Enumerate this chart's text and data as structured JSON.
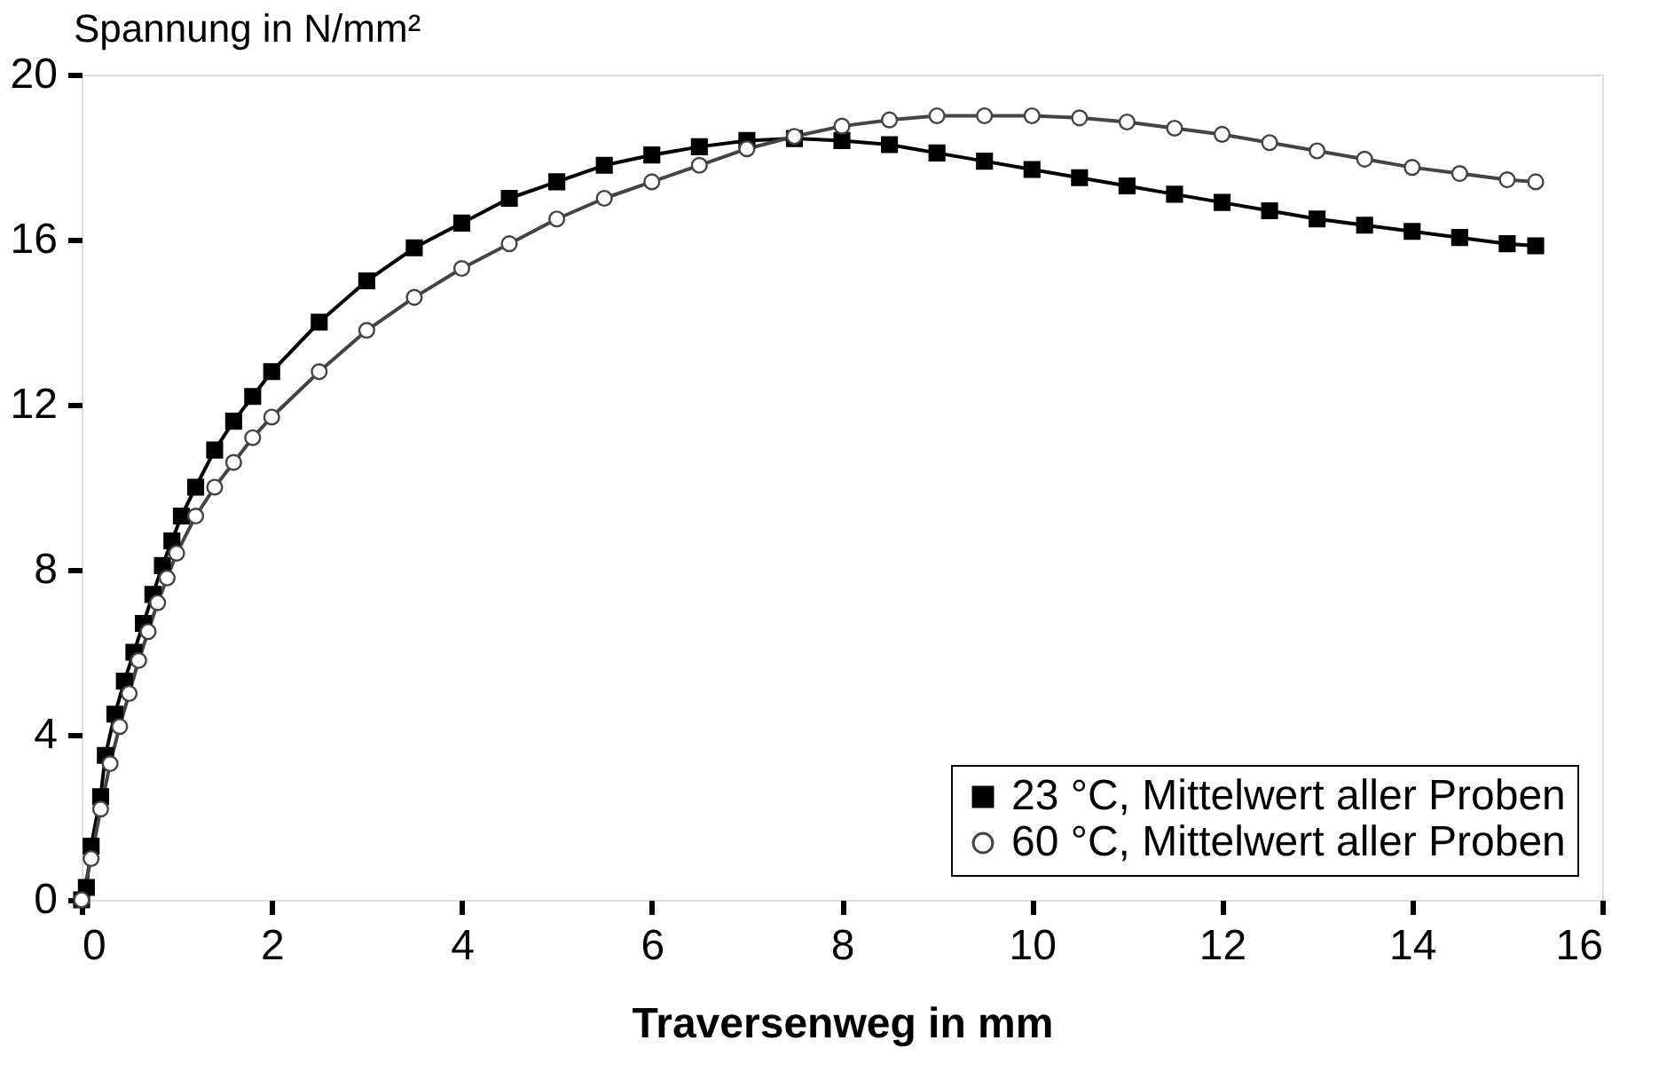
{
  "chart_data": {
    "type": "line",
    "ylabel": "Spannung in N/mm²",
    "xlabel": "Traversenweg in mm",
    "xlim": [
      0,
      16
    ],
    "xticks": [
      0,
      2,
      4,
      6,
      8,
      10,
      12,
      14,
      16
    ],
    "ylim": [
      0,
      20
    ],
    "yticks": [
      0,
      4,
      8,
      12,
      16,
      20
    ],
    "grid": false,
    "legend": "bottom right",
    "line_style": "solid",
    "series": [
      {
        "name": "23 °C, Mittelwert aller Proben",
        "color": "#000000",
        "marker": "square",
        "x": [
          0,
          0.05,
          0.1,
          0.2,
          0.25,
          0.35,
          0.45,
          0.55,
          0.65,
          0.75,
          0.85,
          0.95,
          1.05,
          1.2,
          1.4,
          1.6,
          1.8,
          2,
          2.5,
          3,
          3.5,
          4,
          4.5,
          5,
          5.5,
          6,
          6.5,
          7,
          7.5,
          8,
          8.5,
          9,
          9.5,
          10,
          10.5,
          11,
          11.5,
          12,
          12.5,
          13,
          13.5,
          14,
          14.5,
          15,
          15.3
        ],
        "values": [
          0,
          0.3,
          1.3,
          2.5,
          3.5,
          4.5,
          5.3,
          6,
          6.7,
          7.4,
          8.1,
          8.7,
          9.3,
          10,
          10.9,
          11.6,
          12.2,
          12.8,
          14,
          15,
          15.8,
          16.4,
          17,
          17.4,
          17.8,
          18.05,
          18.25,
          18.4,
          18.45,
          18.4,
          18.3,
          18.1,
          17.9,
          17.7,
          17.5,
          17.3,
          17.1,
          16.9,
          16.7,
          16.5,
          16.35,
          16.2,
          16.05,
          15.9,
          15.85
        ]
      },
      {
        "name": "60 °C, Mittelwert aller Proben",
        "color": "#444444",
        "marker": "circle",
        "x": [
          0,
          0.1,
          0.2,
          0.3,
          0.4,
          0.5,
          0.6,
          0.7,
          0.8,
          0.9,
          1,
          1.2,
          1.4,
          1.6,
          1.8,
          2,
          2.5,
          3,
          3.5,
          4,
          4.5,
          5,
          5.5,
          6,
          6.5,
          7,
          7.5,
          8,
          8.5,
          9,
          9.5,
          10,
          10.5,
          11,
          11.5,
          12,
          12.5,
          13,
          13.5,
          14,
          14.5,
          15,
          15.3
        ],
        "values": [
          0,
          1,
          2.2,
          3.3,
          4.2,
          5,
          5.8,
          6.5,
          7.2,
          7.8,
          8.4,
          9.3,
          10,
          10.6,
          11.2,
          11.7,
          12.8,
          13.8,
          14.6,
          15.3,
          15.9,
          16.5,
          17,
          17.4,
          17.8,
          18.2,
          18.5,
          18.75,
          18.9,
          19,
          19,
          19,
          18.95,
          18.85,
          18.7,
          18.55,
          18.35,
          18.15,
          17.95,
          17.75,
          17.6,
          17.45,
          17.4
        ]
      }
    ]
  }
}
